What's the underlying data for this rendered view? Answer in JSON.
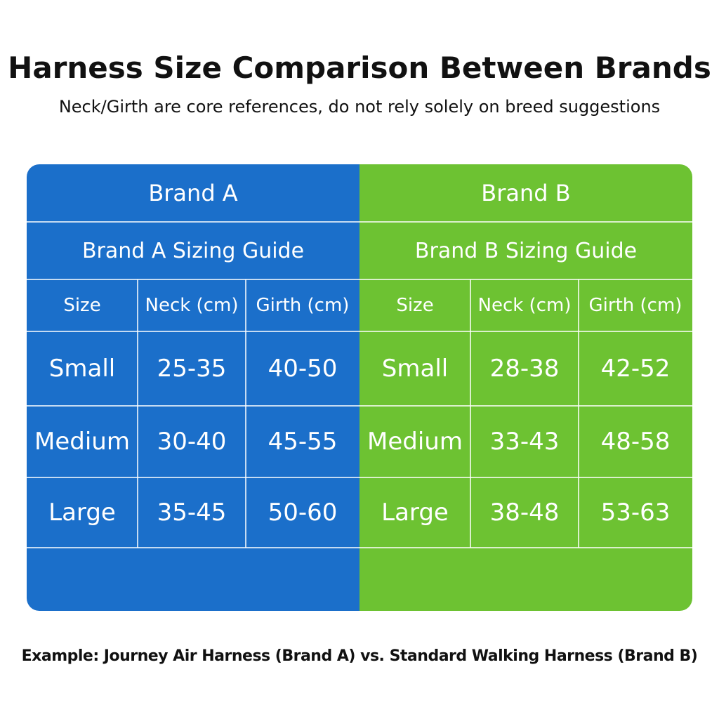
{
  "header": {
    "title": "Harness Size Comparison Between Brands",
    "subtitle": "Neck/Girth are core references, do not rely solely on breed suggestions"
  },
  "brands": [
    {
      "name": "Brand A",
      "guide": "Brand A Sizing Guide",
      "columns": [
        "Size",
        "Neck (cm)",
        "Girth (cm)"
      ],
      "rows": [
        [
          "Small",
          "25-35",
          "40-50"
        ],
        [
          "Medium",
          "30-40",
          "45-55"
        ],
        [
          "Large",
          "35-45",
          "50-60"
        ]
      ]
    },
    {
      "name": "Brand B",
      "guide": "Brand B Sizing Guide",
      "columns": [
        "Size",
        "Neck (cm)",
        "Girth (cm)"
      ],
      "rows": [
        [
          "Small",
          "28-38",
          "42-52"
        ],
        [
          "Medium",
          "33-43",
          "48-58"
        ],
        [
          "Large",
          "38-48",
          "53-63"
        ]
      ]
    }
  ],
  "footer": {
    "note": "Example: Journey Air Harness (Brand A) vs. Standard Walking Harness (Brand B)"
  }
}
